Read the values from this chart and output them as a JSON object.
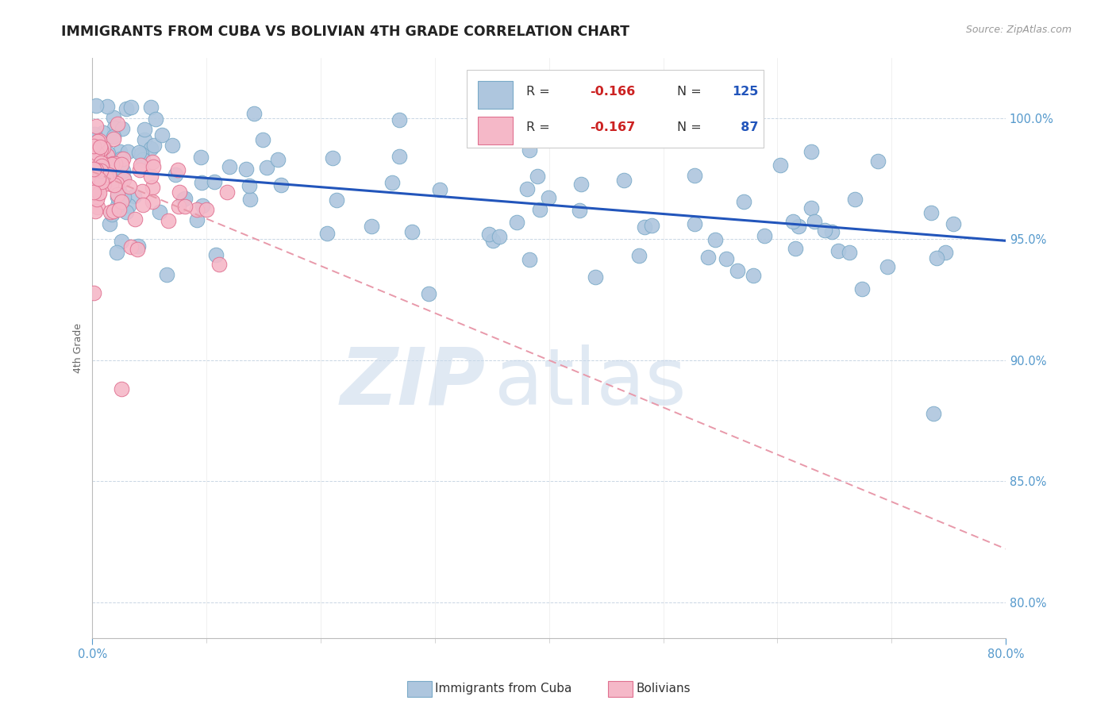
{
  "title": "IMMIGRANTS FROM CUBA VS BOLIVIAN 4TH GRADE CORRELATION CHART",
  "source": "Source: ZipAtlas.com",
  "ylabel": "4th Grade",
  "ylabel_right_ticks": [
    "100.0%",
    "95.0%",
    "90.0%",
    "85.0%",
    "80.0%"
  ],
  "ylabel_right_vals": [
    1.0,
    0.95,
    0.9,
    0.85,
    0.8
  ],
  "xlim": [
    0.0,
    0.8
  ],
  "ylim": [
    0.785,
    1.025
  ],
  "legend_blue_label": "Immigrants from Cuba",
  "legend_pink_label": "Bolivians",
  "R_blue": -0.166,
  "N_blue": 125,
  "R_pink": -0.167,
  "N_pink": 87,
  "blue_color": "#aec6de",
  "blue_edge": "#7aaac8",
  "pink_color": "#f5b8c8",
  "pink_edge": "#e07090",
  "trendline_blue": "#2255bb",
  "trendline_pink": "#e899aa",
  "watermark_zip": "ZIP",
  "watermark_atlas": "atlas",
  "title_color": "#222222",
  "axis_label_color": "#5599cc",
  "blue_intercept": 0.979,
  "blue_slope": -0.037,
  "pink_intercept": 0.978,
  "pink_slope": -0.195
}
